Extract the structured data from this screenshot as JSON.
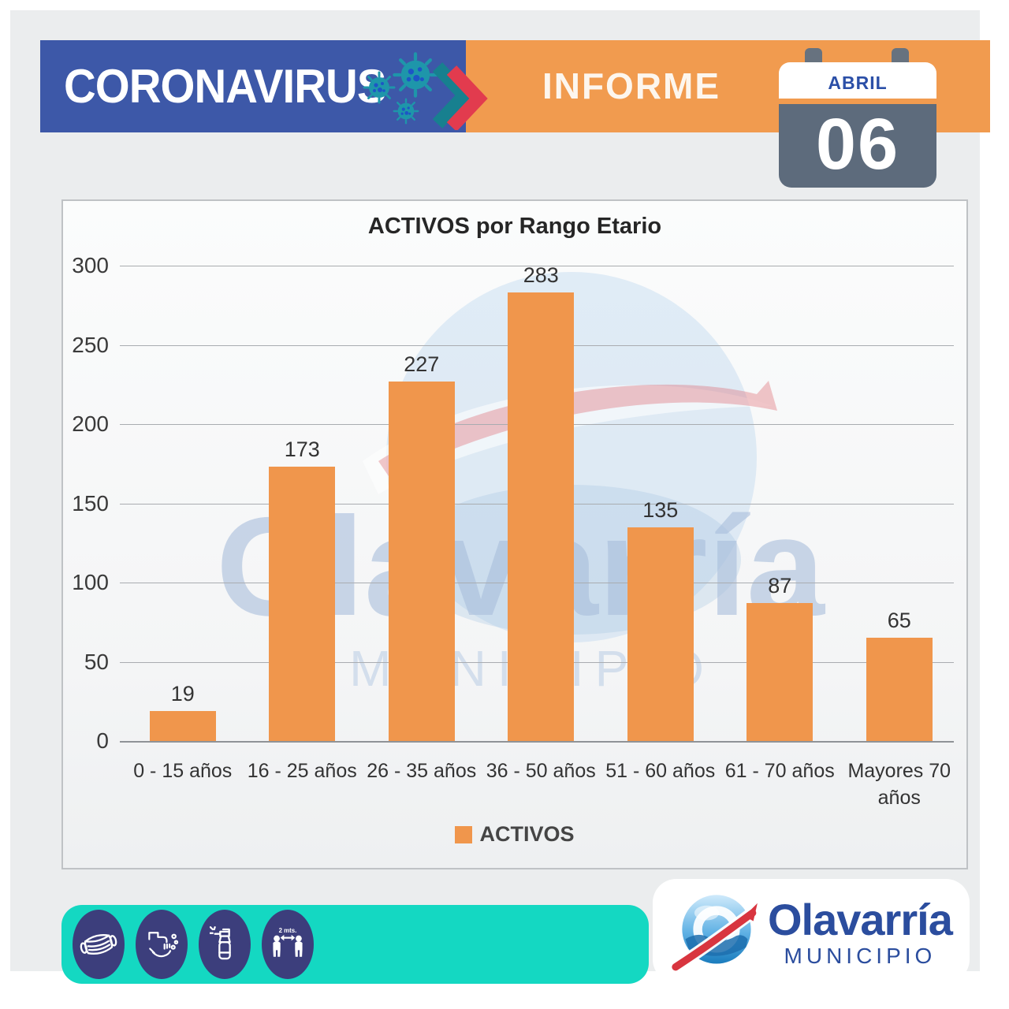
{
  "header": {
    "brand": "CORONAVIRUS",
    "report": "INFORME",
    "calendar": {
      "month": "ABRIL",
      "day": "06"
    },
    "icons": [
      {
        "name": "virus-icon"
      },
      {
        "name": "chevron-right-icon"
      }
    ],
    "colors": {
      "blue": "#3d58a8",
      "orange": "#f19b4f",
      "calendar_gray": "#5d6b7c",
      "month_blue": "#2b4fa7"
    }
  },
  "chart": {
    "title": "ACTIVOS por Rango Etario",
    "legend_label": "ACTIVOS"
  },
  "chart_data": {
    "type": "bar",
    "title": "ACTIVOS por Rango Etario",
    "categories": [
      "0 - 15 años",
      "16 - 25 años",
      "26 - 35 años",
      "36 - 50 años",
      "51 - 60 años",
      "61 - 70 años",
      "Mayores 70 años"
    ],
    "values": [
      19,
      173,
      227,
      283,
      135,
      87,
      65
    ],
    "series_name": "ACTIVOS",
    "xlabel": "",
    "ylabel": "",
    "ylim": [
      0,
      300
    ],
    "ytick_step": 50,
    "grid": true,
    "data_labels": true,
    "legend_position": "bottom",
    "bar_color": "#f0964c"
  },
  "watermark": {
    "brand": "Olavarría",
    "subtitle": "MUNICIPIO"
  },
  "footer": {
    "icons": [
      {
        "name": "mask-icon"
      },
      {
        "name": "handwash-icon"
      },
      {
        "name": "sanitizer-spray-icon"
      },
      {
        "name": "social-distance-icon",
        "label": "2 mts."
      }
    ],
    "logo": {
      "brand": "Olavarría",
      "subtitle": "MUNICIPIO"
    },
    "colors": {
      "teal": "#14d8c2",
      "navy": "#3c3e7c",
      "logo_blue": "#2b4d9e"
    }
  }
}
